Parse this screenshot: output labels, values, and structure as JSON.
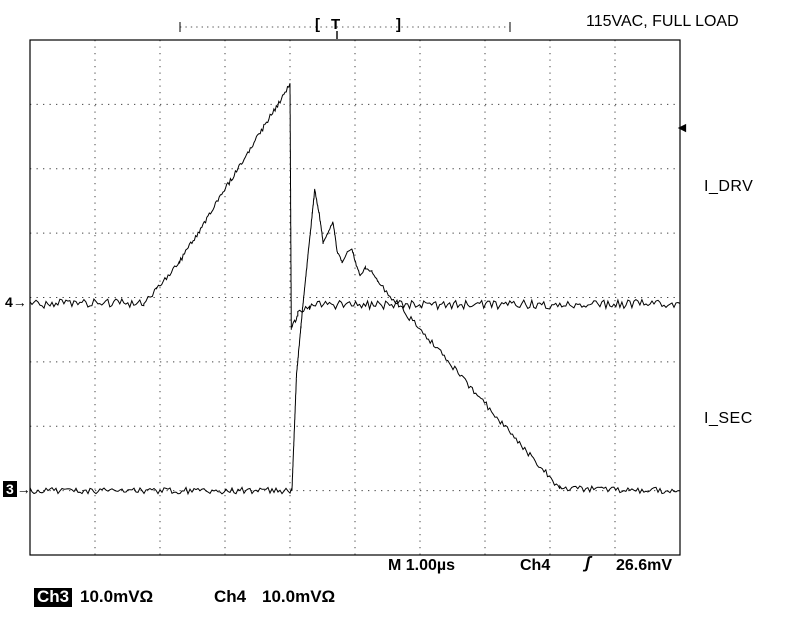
{
  "header": {
    "condition_label": "115VAC, FULL LOAD",
    "acq_left_bracket": "[",
    "acq_trigger": "T",
    "acq_right_bracket": "]"
  },
  "markers": {
    "ch4_ref": "4",
    "ch4_arrow": "→",
    "ch3_ref": "3",
    "ch3_arrow": "→",
    "trigger_arrow": "◄"
  },
  "labels": {
    "i_drv": "I_DRV",
    "i_sec": "I_SEC"
  },
  "readout": {
    "timebase_label": "M 1.00µs",
    "trigger_source": "Ch4",
    "trigger_slope_icon": "ʃ",
    "trigger_level": "26.6mV"
  },
  "channels": [
    {
      "name": "Ch3",
      "scale": "10.0mVΩ",
      "inverted": true
    },
    {
      "name": "Ch4",
      "scale": "10.0mVΩ",
      "inverted": false
    }
  ],
  "chart_data": {
    "type": "line",
    "instrument": "oscilloscope",
    "title": "115VAC, FULL LOAD",
    "time_per_division": "1.00µs",
    "x_divisions": 10,
    "y_divisions": 8,
    "units": "points are [x_div, y_div] in graticule divisions; x: 1.00µs/div, y: 10.0mV/div, y measured from top of graticule",
    "trigger": {
      "source": "Ch4",
      "slope": "rising",
      "level": "26.6mV"
    },
    "series": [
      {
        "name": "I_SEC",
        "channel": "Ch3",
        "vertical_scale": "10.0mV/div",
        "baseline_div": 7.0,
        "segments": [
          {
            "points": [
              [
                0,
                7.0
              ],
              [
                4.03,
                7.0
              ]
            ],
            "noise": 0.05
          },
          {
            "points": [
              [
                4.03,
                7.0
              ],
              [
                4.1,
                5.2
              ],
              [
                4.2,
                4.1
              ],
              [
                4.38,
                2.33
              ]
            ],
            "noise": 0.02
          },
          {
            "points": [
              [
                4.38,
                2.33
              ],
              [
                4.45,
                2.7
              ],
              [
                4.51,
                3.15
              ],
              [
                4.58,
                3.0
              ],
              [
                4.66,
                2.83
              ],
              [
                4.73,
                3.3
              ],
              [
                4.8,
                3.45
              ],
              [
                4.88,
                3.3
              ],
              [
                4.95,
                3.23
              ],
              [
                5.02,
                3.5
              ],
              [
                5.08,
                3.65
              ],
              [
                5.16,
                3.54
              ],
              [
                5.26,
                3.6
              ],
              [
                5.35,
                3.75
              ]
            ],
            "noise": 0.02
          },
          {
            "points": [
              [
                5.35,
                3.75
              ],
              [
                8.15,
                6.97
              ]
            ],
            "noise": 0.05
          },
          {
            "points": [
              [
                8.15,
                6.97
              ],
              [
                10,
                7.0
              ]
            ],
            "noise": 0.05
          }
        ]
      },
      {
        "name": "I_DRV",
        "channel": "Ch4",
        "vertical_scale": "10.0mV/div",
        "baseline_div": 4.1,
        "segments": [
          {
            "points": [
              [
                0,
                4.1
              ],
              [
                1.75,
                4.08
              ]
            ],
            "noise": 0.07
          },
          {
            "points": [
              [
                1.75,
                4.08
              ],
              [
                1.95,
                3.88
              ],
              [
                2.3,
                3.45
              ],
              [
                4.0,
                0.7
              ]
            ],
            "noise": 0.04
          },
          {
            "points": [
              [
                4.0,
                0.7
              ],
              [
                4.02,
                4.5
              ]
            ],
            "noise": 0
          },
          {
            "points": [
              [
                4.02,
                4.5
              ],
              [
                4.12,
                4.25
              ],
              [
                4.3,
                4.12
              ]
            ],
            "noise": 0.04
          },
          {
            "points": [
              [
                4.3,
                4.12
              ],
              [
                10,
                4.1
              ]
            ],
            "noise": 0.07
          }
        ]
      }
    ]
  }
}
